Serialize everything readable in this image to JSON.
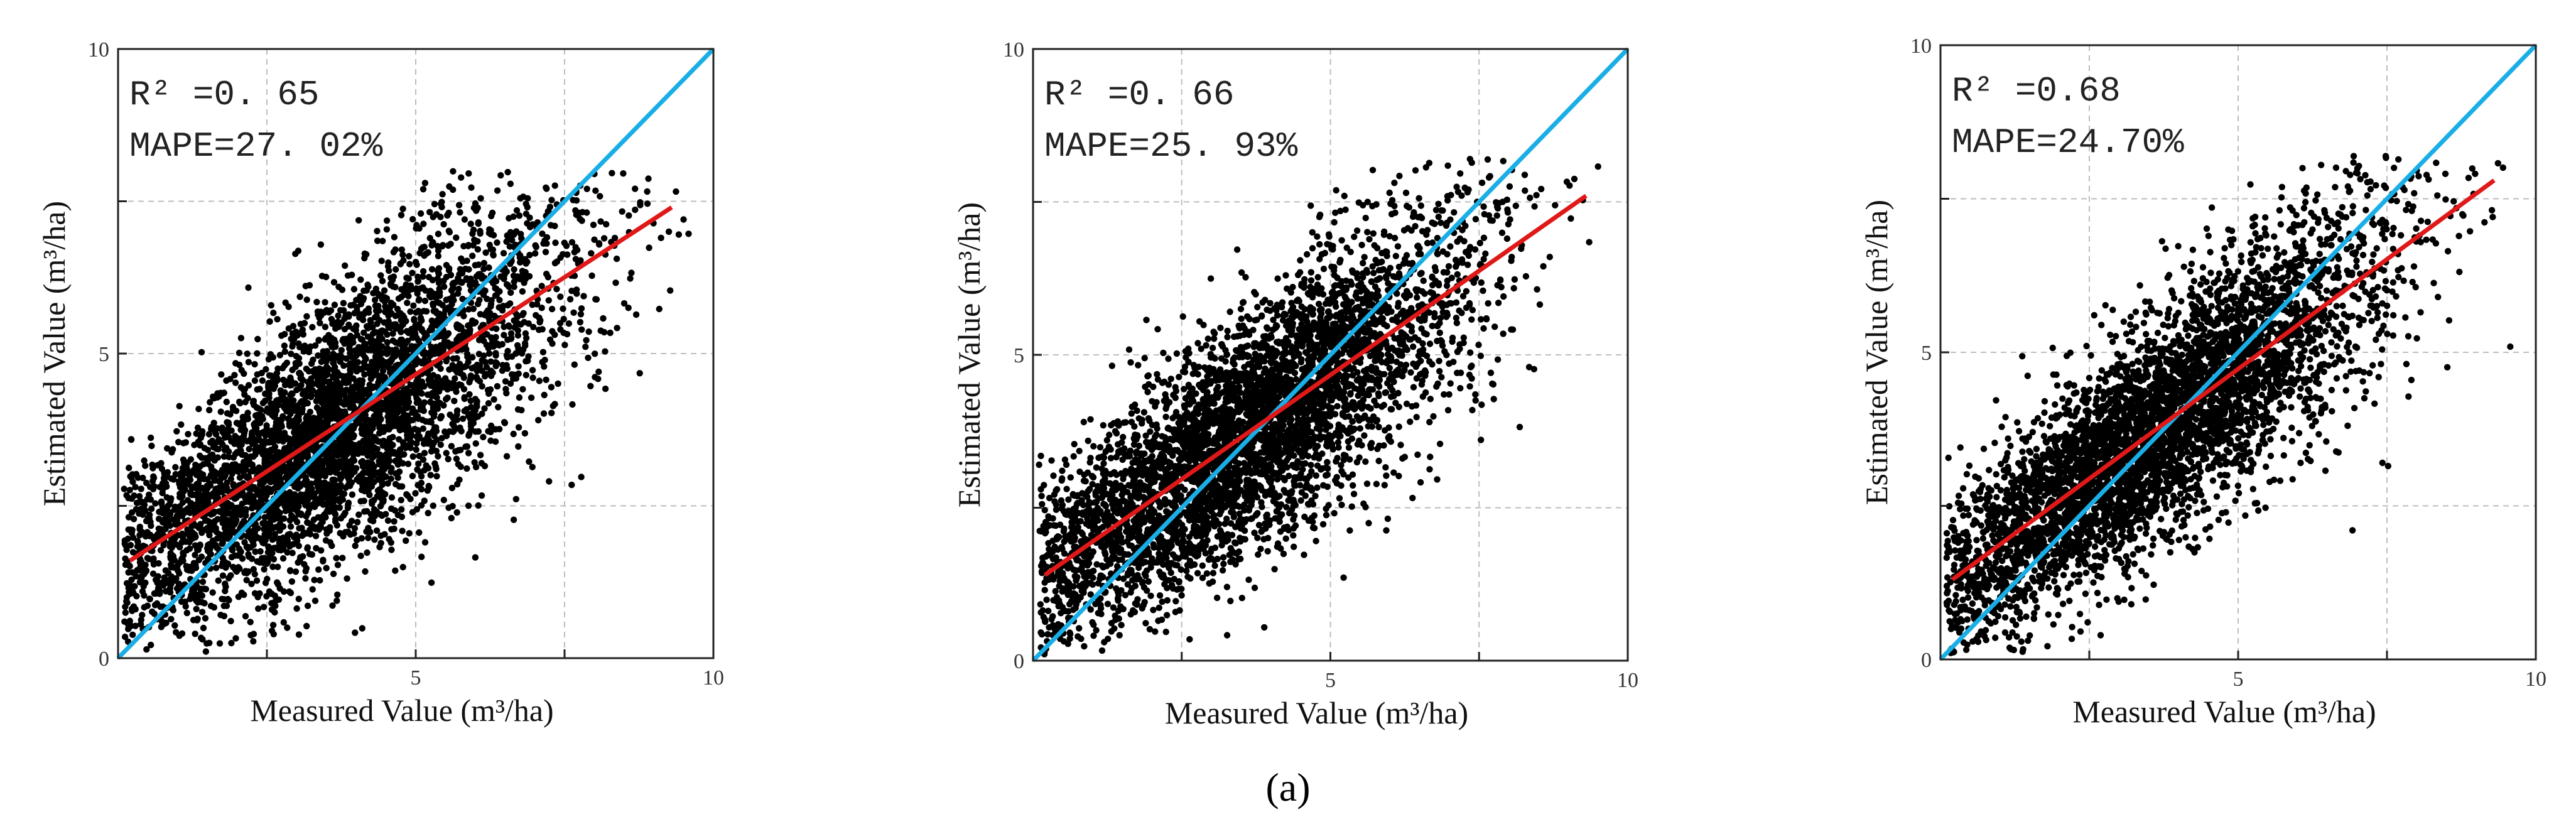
{
  "figure": {
    "panel_label": "(a)"
  },
  "colors": {
    "identity_line": "#1aaee6",
    "fit_line": "#e01818",
    "points": "#000000",
    "grid": "#bdbdbd"
  },
  "chart_data": [
    {
      "type": "scatter",
      "xlabel": "Measured Value (m³/ha)",
      "ylabel": "Estimated Value (m³/ha)",
      "xlim": [
        0,
        10
      ],
      "ylim": [
        0,
        10
      ],
      "xticks": [
        "5",
        "10"
      ],
      "yticks": [
        "0",
        "5",
        "10"
      ],
      "grid": true,
      "annotation": {
        "r2": "R² =0. 65",
        "mape": "MAPE=27. 02%"
      },
      "identity_line": {
        "x": [
          0,
          10
        ],
        "y": [
          0,
          10
        ]
      },
      "fit_line": {
        "x": [
          0.2,
          9.3
        ],
        "y": [
          1.6,
          7.4
        ]
      },
      "n_points": 4500,
      "point_cloud_estimate": {
        "x_range": [
          0.1,
          9.6
        ],
        "y_range": [
          0.1,
          8.0
        ],
        "pattern": "dense band around fit line, spread about ±1.5"
      }
    },
    {
      "type": "scatter",
      "xlabel": "Measured Value (m³/ha)",
      "ylabel": "Estimated Value (m³/ha)",
      "xlim": [
        0,
        10
      ],
      "ylim": [
        0,
        10
      ],
      "xticks": [
        "5",
        "10"
      ],
      "yticks": [
        "0",
        "5",
        "10"
      ],
      "grid": true,
      "annotation": {
        "r2": "R² =0. 66",
        "mape": "MAPE=25. 93%"
      },
      "identity_line": {
        "x": [
          0,
          10
        ],
        "y": [
          0,
          10
        ]
      },
      "fit_line": {
        "x": [
          0.2,
          9.3
        ],
        "y": [
          1.4,
          7.6
        ]
      },
      "n_points": 4500,
      "point_cloud_estimate": {
        "x_range": [
          0.1,
          9.6
        ],
        "y_range": [
          0.1,
          8.2
        ],
        "pattern": "dense band around fit line, spread about ±1.4"
      }
    },
    {
      "type": "scatter",
      "xlabel": "Measured Value (m³/ha)",
      "ylabel": "Estimated Value (m³/ha)",
      "xlim": [
        0,
        10
      ],
      "ylim": [
        0,
        10
      ],
      "xticks": [
        "5",
        "10"
      ],
      "yticks": [
        "0",
        "5",
        "10"
      ],
      "grid": true,
      "annotation": {
        "r2": "R² =0.68",
        "mape": "MAPE=24.70%"
      },
      "identity_line": {
        "x": [
          0,
          10
        ],
        "y": [
          0,
          10
        ]
      },
      "fit_line": {
        "x": [
          0.2,
          9.3
        ],
        "y": [
          1.3,
          7.8
        ]
      },
      "n_points": 4500,
      "point_cloud_estimate": {
        "x_range": [
          0.1,
          9.6
        ],
        "y_range": [
          0.1,
          8.2
        ],
        "pattern": "dense band around fit line, spread about ±1.3"
      }
    }
  ]
}
